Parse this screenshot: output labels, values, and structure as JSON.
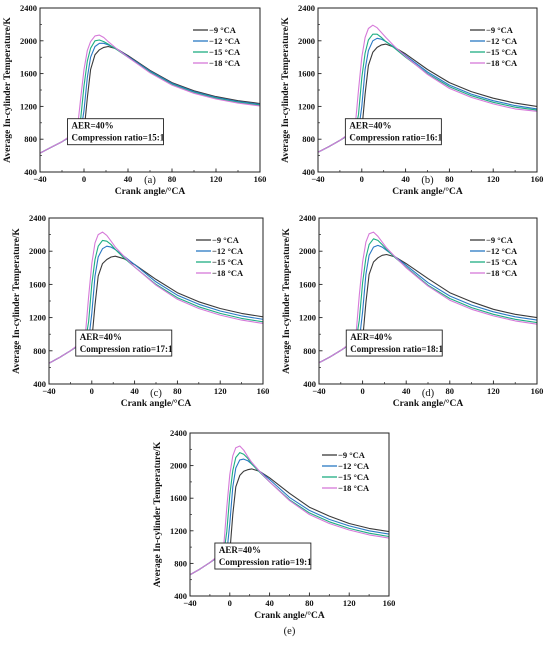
{
  "legend_labels": [
    "−9 °CA",
    "−12 °CA",
    "−15 °CA",
    "−18 °CA"
  ],
  "series_colors": [
    "#3a3a3a",
    "#2a78c4",
    "#1fae82",
    "#d67ad9"
  ],
  "chart_data": [
    {
      "type": "line",
      "caption": "(a)",
      "xlabel": "Crank angle/°CA",
      "ylabel": "Average In-cylinder Temperature/K",
      "xlim": [
        -40,
        160
      ],
      "ylim": [
        400,
        2400
      ],
      "xticks": [
        -40,
        0,
        40,
        80,
        120,
        160
      ],
      "yticks": [
        400,
        800,
        1200,
        1600,
        2000,
        2400
      ],
      "legend_position": "top-right",
      "annotations": [
        "AER=40%",
        "Compression ratio=15:1"
      ],
      "series": [
        {
          "name": "−9 °CA",
          "x": [
            -40,
            -30,
            -20,
            -10,
            -6,
            -3,
            0,
            3,
            6,
            10,
            14,
            18,
            22,
            30,
            40,
            60,
            80,
            100,
            120,
            140,
            160
          ],
          "y": [
            630,
            700,
            770,
            850,
            870,
            880,
            890,
            1300,
            1650,
            1830,
            1890,
            1920,
            1930,
            1900,
            1820,
            1640,
            1490,
            1390,
            1320,
            1270,
            1235
          ]
        },
        {
          "name": "−12 °CA",
          "x": [
            -40,
            -30,
            -20,
            -10,
            -6,
            -3,
            0,
            3,
            6,
            10,
            14,
            18,
            22,
            30,
            40,
            60,
            80,
            100,
            120,
            140,
            160
          ],
          "y": [
            630,
            700,
            770,
            855,
            875,
            885,
            1150,
            1550,
            1800,
            1930,
            1970,
            1970,
            1950,
            1900,
            1810,
            1630,
            1480,
            1380,
            1310,
            1260,
            1225
          ]
        },
        {
          "name": "−15 °CA",
          "x": [
            -40,
            -30,
            -20,
            -10,
            -6,
            -3,
            0,
            3,
            6,
            10,
            14,
            18,
            22,
            30,
            40,
            60,
            80,
            100,
            120,
            140,
            160
          ],
          "y": [
            630,
            700,
            770,
            860,
            880,
            1050,
            1450,
            1750,
            1910,
            2000,
            2010,
            1990,
            1960,
            1890,
            1800,
            1620,
            1470,
            1370,
            1300,
            1250,
            1215
          ]
        },
        {
          "name": "−18 °CA",
          "x": [
            -40,
            -30,
            -20,
            -10,
            -6,
            -3,
            0,
            3,
            6,
            10,
            14,
            18,
            22,
            30,
            40,
            60,
            80,
            100,
            120,
            140,
            160
          ],
          "y": [
            630,
            700,
            770,
            865,
            930,
            1300,
            1650,
            1880,
            1990,
            2060,
            2070,
            2040,
            1990,
            1900,
            1800,
            1610,
            1460,
            1360,
            1290,
            1240,
            1205
          ]
        }
      ]
    },
    {
      "type": "line",
      "caption": "(b)",
      "xlabel": "Crank angle/°CA",
      "ylabel": "Average In-cylinder Temperature/K",
      "xlim": [
        -40,
        160
      ],
      "ylim": [
        400,
        2400
      ],
      "xticks": [
        -40,
        0,
        40,
        80,
        120,
        160
      ],
      "yticks": [
        400,
        800,
        1200,
        1600,
        2000,
        2400
      ],
      "legend_position": "top-right",
      "annotations": [
        "AER=40%",
        "Compression ratio=16:1"
      ],
      "series": [
        {
          "name": "−9 °CA",
          "x": [
            -40,
            -30,
            -20,
            -10,
            -6,
            -3,
            0,
            3,
            6,
            10,
            14,
            18,
            22,
            30,
            40,
            60,
            80,
            100,
            120,
            140,
            160
          ],
          "y": [
            640,
            710,
            785,
            870,
            890,
            900,
            910,
            1350,
            1700,
            1860,
            1920,
            1950,
            1960,
            1920,
            1840,
            1650,
            1490,
            1380,
            1300,
            1240,
            1200
          ]
        },
        {
          "name": "−12 °CA",
          "x": [
            -40,
            -30,
            -20,
            -10,
            -6,
            -3,
            0,
            3,
            6,
            10,
            14,
            18,
            22,
            30,
            40,
            60,
            80,
            100,
            120,
            140,
            160
          ],
          "y": [
            640,
            710,
            785,
            875,
            895,
            905,
            1200,
            1650,
            1880,
            2000,
            2030,
            2020,
            1990,
            1920,
            1820,
            1620,
            1460,
            1350,
            1270,
            1210,
            1170
          ]
        },
        {
          "name": "−15 °CA",
          "x": [
            -40,
            -30,
            -20,
            -10,
            -6,
            -3,
            0,
            3,
            6,
            10,
            14,
            18,
            22,
            30,
            40,
            60,
            80,
            100,
            120,
            140,
            160
          ],
          "y": [
            640,
            710,
            785,
            880,
            900,
            1100,
            1550,
            1850,
            2010,
            2080,
            2080,
            2040,
            1990,
            1910,
            1800,
            1600,
            1440,
            1330,
            1250,
            1190,
            1155
          ]
        },
        {
          "name": "−18 °CA",
          "x": [
            -40,
            -30,
            -20,
            -10,
            -6,
            -3,
            0,
            3,
            6,
            10,
            14,
            18,
            22,
            30,
            40,
            60,
            80,
            100,
            120,
            140,
            160
          ],
          "y": [
            640,
            710,
            785,
            885,
            960,
            1400,
            1800,
            2040,
            2150,
            2190,
            2160,
            2100,
            2040,
            1930,
            1810,
            1590,
            1420,
            1310,
            1230,
            1170,
            1140
          ]
        }
      ]
    },
    {
      "type": "line",
      "caption": "(c)",
      "xlabel": "Crank angle/°CA",
      "ylabel": "Average In-cylinder Temperature/K",
      "xlim": [
        -40,
        160
      ],
      "ylim": [
        400,
        2400
      ],
      "xticks": [
        -40,
        0,
        40,
        80,
        120,
        160
      ],
      "yticks": [
        400,
        800,
        1200,
        1600,
        2000,
        2400
      ],
      "legend_position": "top-right",
      "annotations": [
        "AER=40%",
        "Compression ratio=17:1"
      ],
      "series": [
        {
          "name": "−9 °CA",
          "x": [
            -40,
            -30,
            -20,
            -10,
            -6,
            -3,
            0,
            3,
            6,
            10,
            14,
            18,
            22,
            30,
            40,
            60,
            80,
            100,
            120,
            140,
            160
          ],
          "y": [
            650,
            720,
            800,
            885,
            905,
            915,
            925,
            1350,
            1700,
            1850,
            1900,
            1930,
            1940,
            1910,
            1840,
            1660,
            1500,
            1390,
            1310,
            1250,
            1210
          ]
        },
        {
          "name": "−12 °CA",
          "x": [
            -40,
            -30,
            -20,
            -10,
            -6,
            -3,
            0,
            3,
            6,
            10,
            14,
            18,
            22,
            30,
            40,
            60,
            80,
            100,
            120,
            140,
            160
          ],
          "y": [
            650,
            720,
            800,
            890,
            910,
            920,
            1250,
            1700,
            1930,
            2030,
            2060,
            2050,
            2020,
            1940,
            1840,
            1630,
            1470,
            1360,
            1280,
            1220,
            1180
          ]
        },
        {
          "name": "−15 °CA",
          "x": [
            -40,
            -30,
            -20,
            -10,
            -6,
            -3,
            0,
            3,
            6,
            10,
            14,
            18,
            22,
            30,
            40,
            60,
            80,
            100,
            120,
            140,
            160
          ],
          "y": [
            650,
            720,
            800,
            895,
            915,
            1150,
            1600,
            1900,
            2060,
            2130,
            2120,
            2080,
            2020,
            1920,
            1810,
            1600,
            1440,
            1330,
            1250,
            1190,
            1150
          ]
        },
        {
          "name": "−18 °CA",
          "x": [
            -40,
            -30,
            -20,
            -10,
            -6,
            -3,
            0,
            3,
            6,
            10,
            14,
            18,
            22,
            30,
            40,
            60,
            80,
            100,
            120,
            140,
            160
          ],
          "y": [
            650,
            720,
            800,
            900,
            1000,
            1450,
            1850,
            2100,
            2200,
            2230,
            2190,
            2120,
            2050,
            1940,
            1810,
            1590,
            1420,
            1310,
            1230,
            1170,
            1130
          ]
        }
      ]
    },
    {
      "type": "line",
      "caption": "(d)",
      "xlabel": "Crank angle/°CA",
      "ylabel": "Average In-cylinder Temperature/K",
      "xlim": [
        -40,
        160
      ],
      "ylim": [
        400,
        2400
      ],
      "xticks": [
        -40,
        0,
        40,
        80,
        120,
        160
      ],
      "yticks": [
        400,
        800,
        1200,
        1600,
        2000,
        2400
      ],
      "legend_position": "top-right",
      "annotations": [
        "AER=40%",
        "Compression ratio=18:1"
      ],
      "series": [
        {
          "name": "−9 °CA",
          "x": [
            -40,
            -30,
            -20,
            -10,
            -6,
            -3,
            0,
            3,
            6,
            10,
            14,
            18,
            22,
            30,
            40,
            60,
            80,
            100,
            120,
            140,
            160
          ],
          "y": [
            655,
            725,
            805,
            890,
            910,
            920,
            930,
            1380,
            1720,
            1870,
            1920,
            1950,
            1960,
            1930,
            1850,
            1670,
            1500,
            1390,
            1300,
            1240,
            1200
          ]
        },
        {
          "name": "−12 °CA",
          "x": [
            -40,
            -30,
            -20,
            -10,
            -6,
            -3,
            0,
            3,
            6,
            10,
            14,
            18,
            22,
            30,
            40,
            60,
            80,
            100,
            120,
            140,
            160
          ],
          "y": [
            655,
            725,
            805,
            895,
            915,
            925,
            1270,
            1720,
            1950,
            2050,
            2070,
            2050,
            2010,
            1930,
            1830,
            1620,
            1460,
            1350,
            1270,
            1210,
            1170
          ]
        },
        {
          "name": "−15 °CA",
          "x": [
            -40,
            -30,
            -20,
            -10,
            -6,
            -3,
            0,
            3,
            6,
            10,
            14,
            18,
            22,
            30,
            40,
            60,
            80,
            100,
            120,
            140,
            160
          ],
          "y": [
            655,
            725,
            805,
            900,
            920,
            1170,
            1620,
            1920,
            2080,
            2150,
            2130,
            2080,
            2020,
            1920,
            1810,
            1590,
            1430,
            1320,
            1240,
            1180,
            1140
          ]
        },
        {
          "name": "−18 °CA",
          "x": [
            -40,
            -30,
            -20,
            -10,
            -6,
            -3,
            0,
            3,
            6,
            10,
            14,
            18,
            22,
            30,
            40,
            60,
            80,
            100,
            120,
            140,
            160
          ],
          "y": [
            655,
            725,
            805,
            905,
            1010,
            1470,
            1870,
            2110,
            2210,
            2230,
            2180,
            2110,
            2040,
            1930,
            1800,
            1580,
            1410,
            1300,
            1220,
            1160,
            1120
          ]
        }
      ]
    },
    {
      "type": "line",
      "caption": "(e)",
      "xlabel": "Crank angle/°CA",
      "ylabel": "Average In-cylinder Temperature/K",
      "xlim": [
        -40,
        160
      ],
      "ylim": [
        400,
        2400
      ],
      "xticks": [
        -40,
        0,
        40,
        80,
        120,
        160
      ],
      "yticks": [
        400,
        800,
        1200,
        1600,
        2000,
        2400
      ],
      "legend_position": "top-right",
      "annotations": [
        "AER=40%",
        "Compression ratio=19:1"
      ],
      "series": [
        {
          "name": "−9 °CA",
          "x": [
            -40,
            -30,
            -20,
            -10,
            -6,
            -3,
            0,
            3,
            6,
            10,
            14,
            18,
            22,
            30,
            40,
            60,
            80,
            100,
            120,
            140,
            160
          ],
          "y": [
            660,
            730,
            810,
            895,
            915,
            925,
            935,
            1400,
            1740,
            1880,
            1930,
            1950,
            1960,
            1930,
            1850,
            1660,
            1490,
            1380,
            1290,
            1230,
            1190
          ]
        },
        {
          "name": "−12 °CA",
          "x": [
            -40,
            -30,
            -20,
            -10,
            -6,
            -3,
            0,
            3,
            6,
            10,
            14,
            18,
            22,
            30,
            40,
            60,
            80,
            100,
            120,
            140,
            160
          ],
          "y": [
            660,
            730,
            810,
            900,
            920,
            930,
            1290,
            1740,
            1970,
            2070,
            2080,
            2060,
            2020,
            1930,
            1830,
            1610,
            1450,
            1340,
            1260,
            1200,
            1160
          ]
        },
        {
          "name": "−15 °CA",
          "x": [
            -40,
            -30,
            -20,
            -10,
            -6,
            -3,
            0,
            3,
            6,
            10,
            14,
            18,
            22,
            30,
            40,
            60,
            80,
            100,
            120,
            140,
            160
          ],
          "y": [
            660,
            730,
            810,
            905,
            925,
            1190,
            1640,
            1940,
            2100,
            2160,
            2140,
            2090,
            2020,
            1920,
            1800,
            1580,
            1420,
            1310,
            1230,
            1170,
            1130
          ]
        },
        {
          "name": "−18 °CA",
          "x": [
            -40,
            -30,
            -20,
            -10,
            -6,
            -3,
            0,
            3,
            6,
            10,
            14,
            18,
            22,
            30,
            40,
            60,
            80,
            100,
            120,
            140,
            160
          ],
          "y": [
            660,
            730,
            810,
            910,
            1020,
            1490,
            1890,
            2120,
            2220,
            2240,
            2190,
            2110,
            2040,
            1930,
            1800,
            1570,
            1400,
            1290,
            1210,
            1150,
            1110
          ]
        }
      ]
    }
  ]
}
